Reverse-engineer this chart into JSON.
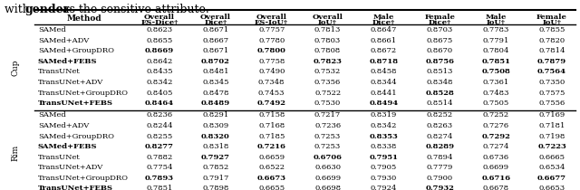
{
  "title_text": "with ",
  "title_bold": "gender",
  "title_rest": " as the sensitive attribute.",
  "columns": [
    "Method",
    "Overall\nES-Dice†",
    "Overall\nDice†",
    "Overall\nES-IoU†",
    "Overall\nIoU†",
    "Male\nDice†",
    "Female\nDice†",
    "Male\nIoU†",
    "Female\nIoU†"
  ],
  "group_labels": [
    "Cup",
    "Rim"
  ],
  "cup_rows": [
    {
      "method": "SAMed",
      "bold_method": false,
      "values": [
        "0.8623",
        "0.8671",
        "0.7757",
        "0.7813",
        "0.8647",
        "0.8703",
        "0.7783",
        "0.7855"
      ],
      "bold_vals": [
        false,
        false,
        false,
        false,
        false,
        false,
        false,
        false
      ]
    },
    {
      "method": "SAMed+ADV",
      "bold_method": false,
      "values": [
        "0.8655",
        "0.8667",
        "0.7780",
        "0.7803",
        "0.8661",
        "0.8675",
        "0.7791",
        "0.7820"
      ],
      "bold_vals": [
        false,
        false,
        false,
        false,
        false,
        false,
        false,
        false
      ]
    },
    {
      "method": "SAMed+GroupDRO",
      "bold_method": false,
      "values": [
        "0.8669",
        "0.8671",
        "0.7800",
        "0.7808",
        "0.8672",
        "0.8670",
        "0.7804",
        "0.7814"
      ],
      "bold_vals": [
        true,
        false,
        true,
        false,
        false,
        false,
        false,
        false
      ]
    },
    {
      "method": "SAMed+FEBS",
      "bold_method": true,
      "values": [
        "0.8642",
        "0.8702",
        "0.7758",
        "0.7823",
        "0.8718",
        "0.8756",
        "0.7851",
        "0.7879"
      ],
      "bold_vals": [
        false,
        true,
        false,
        true,
        true,
        true,
        true,
        true
      ]
    },
    {
      "method": "TransUNet",
      "bold_method": false,
      "values": [
        "0.8435",
        "0.8481",
        "0.7490",
        "0.7532",
        "0.8458",
        "0.8513",
        "0.7508",
        "0.7564"
      ],
      "bold_vals": [
        false,
        false,
        false,
        false,
        false,
        false,
        true,
        true
      ]
    },
    {
      "method": "TransUNet+ADV",
      "bold_method": false,
      "values": [
        "0.8342",
        "0.8345",
        "0.7348",
        "0.7356",
        "0.8344",
        "0.8348",
        "0.7361",
        "0.7350"
      ],
      "bold_vals": [
        false,
        false,
        false,
        false,
        false,
        false,
        false,
        false
      ]
    },
    {
      "method": "TransUNet+GroupDRO",
      "bold_method": false,
      "values": [
        "0.8405",
        "0.8478",
        "0.7453",
        "0.7522",
        "0.8441",
        "0.8528",
        "0.7483",
        "0.7575"
      ],
      "bold_vals": [
        false,
        false,
        false,
        false,
        false,
        true,
        false,
        false
      ]
    },
    {
      "method": "TransUNet+FEBS",
      "bold_method": true,
      "values": [
        "0.8464",
        "0.8489",
        "0.7492",
        "0.7530",
        "0.8494",
        "0.8514",
        "0.7505",
        "0.7556"
      ],
      "bold_vals": [
        true,
        true,
        true,
        false,
        true,
        false,
        false,
        false
      ]
    }
  ],
  "rim_rows": [
    {
      "method": "SAMed",
      "bold_method": false,
      "values": [
        "0.8236",
        "0.8291",
        "0.7158",
        "0.7217",
        "0.8319",
        "0.8252",
        "0.7252",
        "0.7169"
      ],
      "bold_vals": [
        false,
        false,
        false,
        false,
        false,
        false,
        false,
        false
      ]
    },
    {
      "method": "SAMed+ADV",
      "bold_method": false,
      "values": [
        "0.8244",
        "0.8309",
        "0.7168",
        "0.7236",
        "0.8342",
        "0.8263",
        "0.7276",
        "0.7181"
      ],
      "bold_vals": [
        false,
        false,
        false,
        false,
        false,
        false,
        false,
        false
      ]
    },
    {
      "method": "SAMed+GroupDRO",
      "bold_method": false,
      "values": [
        "0.8255",
        "0.8320",
        "0.7185",
        "0.7253",
        "0.8353",
        "0.8274",
        "0.7292",
        "0.7198"
      ],
      "bold_vals": [
        false,
        true,
        false,
        false,
        true,
        false,
        true,
        false
      ]
    },
    {
      "method": "SAMed+FEBS",
      "bold_method": true,
      "values": [
        "0.8277",
        "0.8318",
        "0.7216",
        "0.7253",
        "0.8338",
        "0.8289",
        "0.7274",
        "0.7223"
      ],
      "bold_vals": [
        true,
        false,
        true,
        false,
        false,
        true,
        false,
        true
      ]
    },
    {
      "method": "TransUNet",
      "bold_method": false,
      "values": [
        "0.7882",
        "0.7927",
        "0.6659",
        "0.6706",
        "0.7951",
        "0.7894",
        "0.6736",
        "0.6665"
      ],
      "bold_vals": [
        false,
        true,
        false,
        true,
        true,
        false,
        false,
        false
      ]
    },
    {
      "method": "TransUNet+ADV",
      "bold_method": false,
      "values": [
        "0.7754",
        "0.7852",
        "0.6522",
        "0.6630",
        "0.7905",
        "0.7779",
        "0.6699",
        "0.6534"
      ],
      "bold_vals": [
        false,
        false,
        false,
        false,
        false,
        false,
        false,
        false
      ]
    },
    {
      "method": "TransUNet+GroupDRO",
      "bold_method": false,
      "values": [
        "0.7893",
        "0.7917",
        "0.6673",
        "0.6699",
        "0.7930",
        "0.7900",
        "0.6716",
        "0.6677"
      ],
      "bold_vals": [
        true,
        false,
        true,
        false,
        false,
        false,
        true,
        true
      ]
    },
    {
      "method": "TransUNet+FEBS",
      "bold_method": true,
      "values": [
        "0.7851",
        "0.7898",
        "0.6655",
        "0.6698",
        "0.7924",
        "0.7932",
        "0.6678",
        "0.6653"
      ],
      "bold_vals": [
        false,
        false,
        false,
        false,
        false,
        true,
        false,
        false
      ]
    }
  ],
  "bg_color": "#ffffff",
  "header_color": "#ffffff",
  "row_colors": [
    "#ffffff",
    "#f0f0f0"
  ],
  "text_color": "#000000",
  "line_color": "#000000"
}
